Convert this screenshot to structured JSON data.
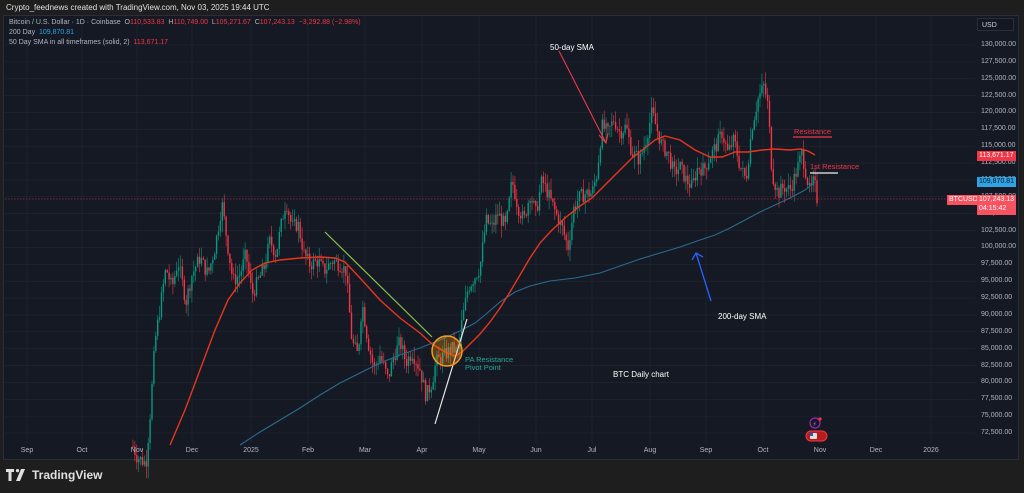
{
  "caption": "Crypto_feednews created with TradingView.com, Nov 03, 2025 19:44 UTC",
  "legend": {
    "symbol": "Bitcoin / U.S. Dollar · 1D · Coinbase",
    "open_label": "O",
    "open": "110,533.83",
    "high_label": "H",
    "high": "110,749.00",
    "low_label": "L",
    "low": "105,271.67",
    "close_label": "C",
    "close": "107,243.13",
    "change": "−3,292.88 (−2.98%)",
    "sma200_label": "200 Day",
    "sma200_value": "109,870.81",
    "sma50_label": "50 Day SMA in all timeframes (solid, 2)",
    "sma50_value": "113,671.17"
  },
  "currency_button": "USD",
  "price_axis": [
    "130,000.00",
    "127,500.00",
    "125,000.00",
    "122,500.00",
    "120,000.00",
    "117,500.00",
    "115,000.00",
    "112,500.00",
    "110,000.00",
    "107,500.00",
    "105,000.00",
    "102,500.00",
    "100,000.00",
    "97,500.00",
    "95,000.00",
    "92,500.00",
    "90,000.00",
    "87,500.00",
    "85,000.00",
    "82,500.00",
    "80,000.00",
    "77,500.00",
    "75,000.00",
    "72,500.00"
  ],
  "price_tags": {
    "sma50": {
      "value": "113,671.17",
      "color": "#f23645"
    },
    "sma200": {
      "value": "109,870.81",
      "color": "#2ea3e6"
    },
    "symbol": "BTCUSD",
    "last": {
      "value": "107,243.13",
      "countdown": "04:15:42",
      "color": "#f7525f"
    }
  },
  "time_axis": [
    "Sep",
    "Oct",
    "Nov",
    "Dec",
    "2025",
    "Feb",
    "Mar",
    "Apr",
    "May",
    "Jun",
    "Jul",
    "Aug",
    "Sep",
    "Oct",
    "Nov",
    "Dec",
    "2026"
  ],
  "annotations": {
    "sma50_label": "50-day SMA",
    "sma200_label": "200-day SMA",
    "resistance": "Resistance",
    "first_resistance": "1st Resistance",
    "pivot_line1": "PA Resistance",
    "pivot_line2": "Pivot Point",
    "chart_title": "BTC Daily chart"
  },
  "brand": "TradingView",
  "colors": {
    "up": "#089981",
    "down": "#f23645",
    "sma50": "#e8361e",
    "sma200": "#2b6a8f",
    "background": "#151924",
    "grid": "#232734"
  },
  "chart_data": {
    "type": "candlestick",
    "title": "BTC Daily chart",
    "symbol": "Bitcoin / U.S. Dollar · 1D · Coinbase",
    "ylabel": "USD",
    "ylim": [
      71000,
      131500
    ],
    "x": [
      "Nov 2024",
      "Dec 2024",
      "Jan 2025",
      "Feb 2025",
      "Mar 2025",
      "Apr 2025",
      "May 2025",
      "Jun 2025",
      "Jul 2025",
      "Aug 2025",
      "Sep 2025",
      "Oct 2025",
      "Nov 2025"
    ],
    "series": [
      {
        "name": "BTCUSD close (approx, monthly)",
        "values": [
          72000,
          96500,
          102000,
          97000,
          84000,
          83000,
          104000,
          106000,
          117000,
          116000,
          112000,
          122000,
          107243
        ]
      },
      {
        "name": "50 Day SMA (approx)",
        "values": [
          null,
          72500,
          96000,
          100000,
          92000,
          84000,
          88000,
          104000,
          108000,
          115000,
          114000,
          113500,
          113671
        ]
      },
      {
        "name": "200 Day SMA (approx)",
        "values": [
          null,
          null,
          72500,
          79000,
          82500,
          86500,
          91000,
          96000,
          99000,
          102000,
          104000,
          108000,
          109871
        ]
      }
    ],
    "last_ohlc": {
      "open": 110533.83,
      "high": 110749.0,
      "low": 105271.67,
      "close": 107243.13,
      "change": -3292.88,
      "change_pct": -2.98
    },
    "annotations": [
      "50-day SMA",
      "200-day SMA",
      "Resistance",
      "1st Resistance",
      "PA Resistance Pivot Point",
      "BTC Daily chart"
    ],
    "grid": true
  }
}
